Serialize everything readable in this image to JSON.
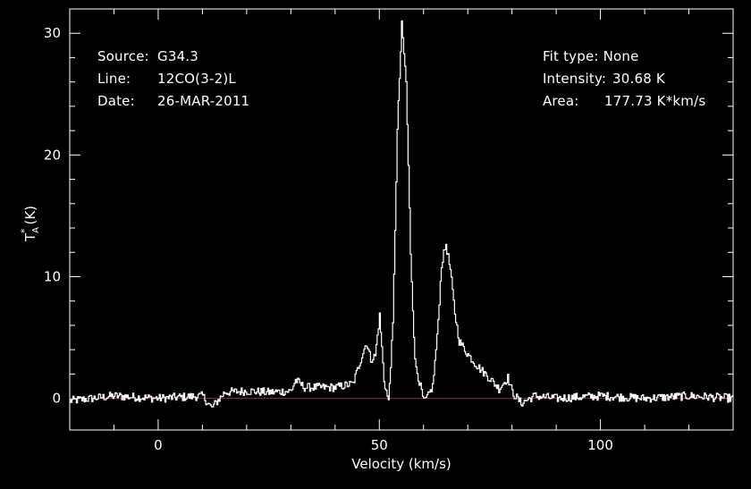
{
  "annotations": {
    "source_label": "Source:",
    "source_value": "G34.3",
    "line_label": "Line:",
    "line_value": "12CO(3-2)L",
    "date_label": "Date:",
    "date_value": "26-MAR-2011",
    "fit_label": "Fit type:",
    "fit_value": "None",
    "intensity_label": "Intensity:",
    "intensity_value": "30.68 K",
    "area_label": "Area:",
    "area_value": "177.73 K*km/s"
  },
  "colors": {
    "background": "#000000",
    "foreground": "#ffffff",
    "baseline": "#ff0000"
  },
  "chart_data": {
    "type": "line",
    "xlabel": "Velocity (km/s)",
    "ylabel": "T_A^* (K)",
    "xlim": [
      -20,
      130
    ],
    "ylim": [
      -2.6,
      32
    ],
    "x_ticks": [
      0,
      50,
      100
    ],
    "y_ticks": [
      0,
      10,
      20,
      30
    ],
    "baseline_y": 0,
    "grid": false,
    "series": [
      {
        "color": "#ffffff",
        "x": [
          -20,
          -10,
          0,
          10,
          12,
          15,
          20,
          25,
          30,
          31,
          33,
          40,
          44,
          46,
          47,
          48,
          49,
          50,
          51,
          52,
          53,
          54,
          55,
          56,
          57,
          58,
          60,
          61,
          62,
          63,
          64,
          65,
          66,
          67,
          68,
          70,
          72,
          75,
          77,
          79,
          80,
          82,
          85,
          90,
          100,
          110,
          120,
          130
        ],
        "y": [
          -0.2,
          0.2,
          0.0,
          0.2,
          -0.8,
          0.5,
          0.6,
          0.5,
          0.6,
          1.5,
          0.9,
          0.9,
          1.2,
          3.5,
          4.6,
          3.2,
          3.5,
          6.8,
          1.5,
          -0.3,
          6.0,
          22.0,
          30.68,
          26.0,
          12.0,
          3.0,
          -0.3,
          0.2,
          1.0,
          5.0,
          11.0,
          12.7,
          10.5,
          7.0,
          4.7,
          3.6,
          2.7,
          1.6,
          0.8,
          1.7,
          0.5,
          -0.4,
          0.2,
          0.0,
          0.2,
          0.0,
          0.2,
          0.0
        ]
      }
    ]
  }
}
